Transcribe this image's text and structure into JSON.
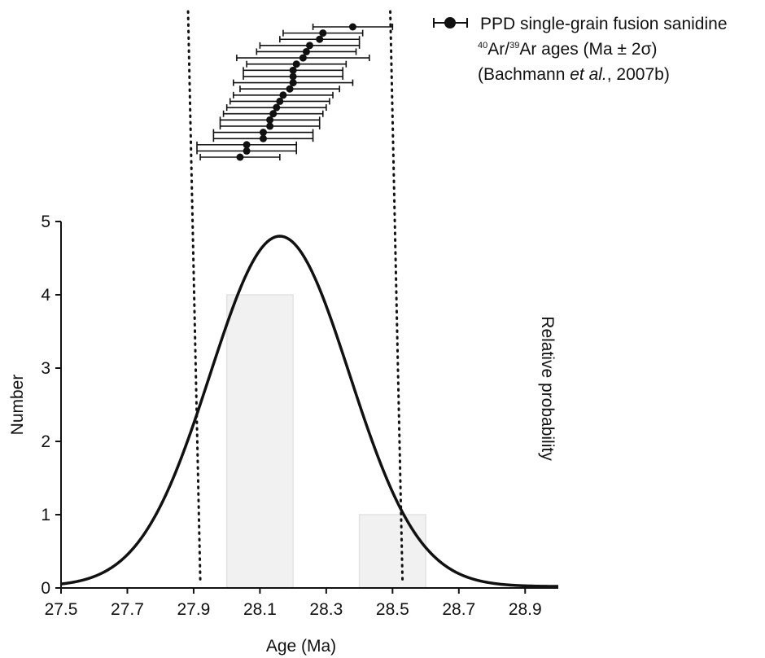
{
  "chart_data": {
    "type": "bar",
    "xlabel": "Age (Ma)",
    "ylabel": "Number",
    "y2label": "Relative probability",
    "xlim": [
      27.5,
      29.0
    ],
    "ylim": [
      0,
      5
    ],
    "xticks": [
      "27.5",
      "27.7",
      "27.9",
      "28.1",
      "28.3",
      "28.5",
      "28.7",
      "28.9"
    ],
    "yticks": [
      "0",
      "1",
      "2",
      "3",
      "4",
      "5"
    ],
    "histogram": [
      {
        "x0": 28.0,
        "x1": 28.2,
        "count": 4
      },
      {
        "x0": 28.4,
        "x1": 28.6,
        "count": 1
      }
    ],
    "probability_curve": {
      "mean": 28.16,
      "sigma": 0.21,
      "peak": 4.8,
      "baseline": 0.02
    },
    "reference_lines": [
      27.92,
      28.53
    ],
    "single_grain_ages": [
      {
        "age": 28.38,
        "err": 0.12
      },
      {
        "age": 28.29,
        "err": 0.12
      },
      {
        "age": 28.28,
        "err": 0.12
      },
      {
        "age": 28.25,
        "err": 0.15
      },
      {
        "age": 28.24,
        "err": 0.15
      },
      {
        "age": 28.23,
        "err": 0.2
      },
      {
        "age": 28.21,
        "err": 0.15
      },
      {
        "age": 28.2,
        "err": 0.15
      },
      {
        "age": 28.2,
        "err": 0.15
      },
      {
        "age": 28.2,
        "err": 0.18
      },
      {
        "age": 28.19,
        "err": 0.15
      },
      {
        "age": 28.17,
        "err": 0.15
      },
      {
        "age": 28.16,
        "err": 0.15
      },
      {
        "age": 28.15,
        "err": 0.15
      },
      {
        "age": 28.14,
        "err": 0.15
      },
      {
        "age": 28.13,
        "err": 0.15
      },
      {
        "age": 28.13,
        "err": 0.15
      },
      {
        "age": 28.11,
        "err": 0.15
      },
      {
        "age": 28.11,
        "err": 0.15
      },
      {
        "age": 28.06,
        "err": 0.15
      },
      {
        "age": 28.06,
        "err": 0.15
      },
      {
        "age": 28.04,
        "err": 0.12
      }
    ],
    "legend": {
      "line1": "PPD single-grain fusion sanidine",
      "line2_sup1": "40",
      "line2_mid": "Ar/",
      "line2_sup2": "39",
      "line2_rest": "Ar ages (Ma ± 2σ)",
      "line3_pre": "(Bachmann ",
      "line3_ital": "et al.",
      "line3_post": ", 2007b)"
    },
    "colors": {
      "line": "#111111",
      "bar_fill": "#f1f1f1",
      "bar_stroke": "#e2e2e2"
    }
  }
}
